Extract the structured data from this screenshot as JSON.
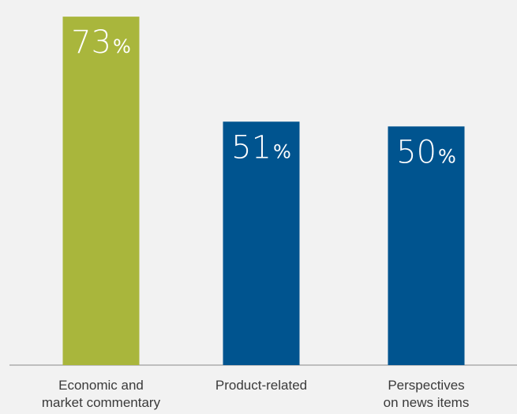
{
  "chart_data": {
    "type": "bar",
    "categories": [
      [
        "Economic and",
        "market commentary"
      ],
      [
        "Product-related"
      ],
      [
        "Perspectives",
        "on news items"
      ]
    ],
    "values": [
      73,
      51,
      50
    ],
    "value_labels": [
      "73",
      "51",
      "50"
    ],
    "unit": "%",
    "bar_colors": [
      "#a9b63c",
      "#00548f",
      "#00548f"
    ],
    "ylim": [
      0,
      75
    ],
    "grid": false,
    "legend": "none",
    "title": "",
    "xlabel": "",
    "ylabel": ""
  }
}
